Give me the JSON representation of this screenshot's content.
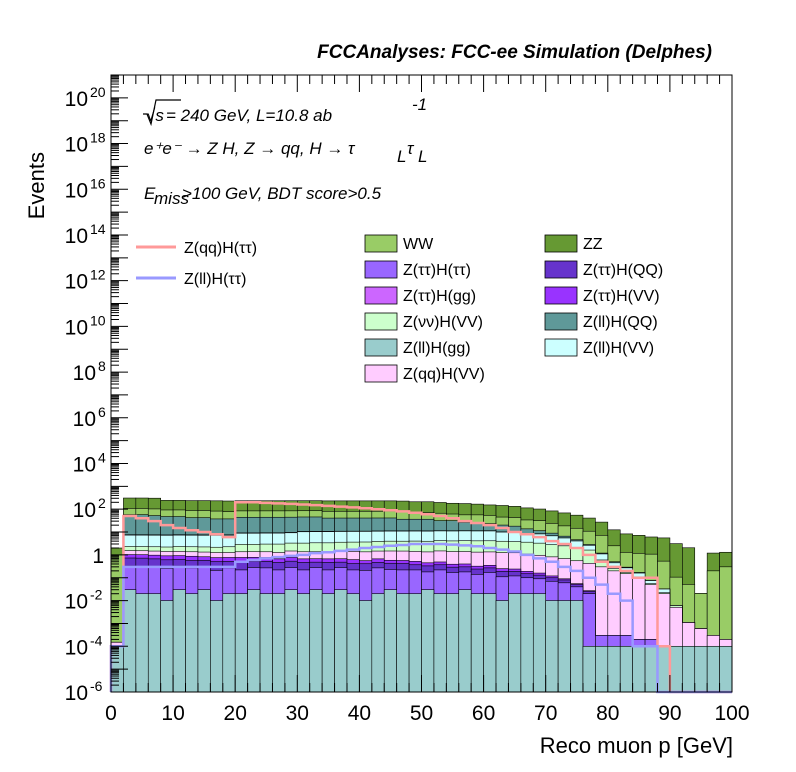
{
  "chart_data": {
    "type": "area",
    "title": "FCCAnalyses: FCC-ee Simulation (Delphes)",
    "xlabel": "Reco muon p [GeV]",
    "ylabel": "Events",
    "xlim": [
      0,
      100
    ],
    "ylim": [
      1e-06,
      1e+21
    ],
    "yscale": "log",
    "grid": false,
    "legend_position": "upper-center",
    "x_ticks": [
      "0",
      "10",
      "20",
      "30",
      "40",
      "50",
      "60",
      "70",
      "80",
      "90",
      "100"
    ],
    "y_ticks": [
      {
        "base": "10",
        "exp": "-6"
      },
      {
        "base": "10",
        "exp": "-4"
      },
      {
        "base": "10",
        "exp": "-2"
      },
      {
        "base": "1",
        "exp": ""
      },
      {
        "base": "10",
        "exp": "2"
      },
      {
        "base": "10",
        "exp": "4"
      },
      {
        "base": "10",
        "exp": "6"
      },
      {
        "base": "10",
        "exp": "8"
      },
      {
        "base": "10",
        "exp": "10"
      },
      {
        "base": "10",
        "exp": "12"
      },
      {
        "base": "10",
        "exp": "14"
      },
      {
        "base": "10",
        "exp": "16"
      },
      {
        "base": "10",
        "exp": "18"
      },
      {
        "base": "10",
        "exp": "20"
      }
    ],
    "annotations": {
      "line1_sqrt": "√s",
      "line1_text": "= 240 GeV, L=10.8 ab",
      "line1_exp": "-1",
      "line2": "e⁺e⁻ → Z H, Z → qq, H → τ",
      "line2_sub1": "L",
      "line2_tau": "τ",
      "line2_sub2": "L",
      "line3_main": "E",
      "line3_sub": "miss",
      "line3_rest": ">100 GeV, BDT score>0.5"
    },
    "bin_width": 2,
    "stack_order": [
      "Z(ll)H(gg)",
      "Z(ττ)H(ττ)",
      "Z(ττ)H(QQ)",
      "Z(ττ)H(VV)",
      "Z(qq)H(VV)",
      "Z(νν)H(VV)",
      "Z(ll)H(VV)",
      "Z(ττ)H(gg)",
      "Z(ll)H(QQ)",
      "WW",
      "ZZ"
    ],
    "stacked_series": [
      {
        "name": "Z(ll)H(gg)",
        "color": "#99cccc",
        "values": [
          0.0001,
          0.03,
          0.02,
          0.02,
          0.01,
          0.03,
          0.02,
          0.03,
          0.01,
          0.02,
          0.02,
          0.03,
          0.02,
          0.02,
          0.03,
          0.02,
          0.03,
          0.02,
          0.03,
          0.02,
          0.01,
          0.02,
          0.03,
          0.02,
          0.02,
          0.03,
          0.02,
          0.02,
          0.03,
          0.02,
          0.02,
          0.01,
          0.02,
          0.02,
          0.02,
          0.01,
          0.01,
          0.01,
          0.0001,
          0.0001,
          0.0001,
          0.0001,
          0.0001,
          0.0001,
          0.0001,
          0.0001,
          0.0001,
          0.0001,
          0.0001,
          0.0001
        ]
      },
      {
        "name": "Z(ττ)H(ττ)",
        "color": "#9966ff",
        "values": [
          0,
          0.3,
          0.3,
          0.3,
          0.25,
          0.3,
          0.25,
          0.25,
          0.2,
          0.25,
          0.2,
          0.25,
          0.25,
          0.2,
          0.25,
          0.2,
          0.25,
          0.2,
          0.25,
          0.2,
          0.2,
          0.25,
          0.2,
          0.2,
          0.2,
          0.15,
          0.2,
          0.15,
          0.15,
          0.12,
          0.15,
          0.1,
          0.1,
          0.08,
          0.07,
          0.06,
          0.05,
          0.03,
          0.02,
          0.0002,
          0.0002,
          0.0002,
          0.0001,
          0.0001,
          0,
          0,
          0,
          0,
          0,
          0
        ]
      },
      {
        "name": "Z(ττ)H(QQ)",
        "color": "#6633cc",
        "values": [
          0,
          0.4,
          0.4,
          0.35,
          0.35,
          0.3,
          0.3,
          0.3,
          0.3,
          0.25,
          0.3,
          0.25,
          0.25,
          0.25,
          0.25,
          0.25,
          0.2,
          0.25,
          0.2,
          0.2,
          0.2,
          0.2,
          0.2,
          0.2,
          0.15,
          0.15,
          0.15,
          0.12,
          0.12,
          0.1,
          0.1,
          0.08,
          0.07,
          0.05,
          0.04,
          0.03,
          0.02,
          0.01,
          0.005,
          0,
          0,
          0,
          0,
          0,
          0,
          0,
          0,
          0,
          0,
          0
        ]
      },
      {
        "name": "Z(ττ)H(VV)",
        "color": "#9933ff",
        "values": [
          0,
          0.3,
          0.3,
          0.3,
          0.3,
          0.3,
          0.3,
          0.25,
          0.25,
          0.25,
          0.25,
          0.25,
          0.25,
          0.2,
          0.25,
          0.2,
          0.2,
          0.2,
          0.2,
          0.2,
          0.15,
          0.2,
          0.15,
          0.15,
          0.15,
          0.12,
          0.12,
          0.1,
          0.1,
          0.08,
          0.08,
          0.06,
          0.05,
          0.04,
          0.03,
          0.02,
          0.01,
          0.005,
          0.002,
          0,
          0,
          0,
          0,
          0,
          0,
          0,
          0,
          0,
          0,
          0
        ]
      },
      {
        "name": "Z(qq)H(VV)",
        "color": "#ffccff",
        "values": [
          5e-05,
          0.5,
          0.5,
          0.5,
          0.5,
          0.5,
          0.5,
          0.5,
          0.5,
          0.5,
          0.6,
          0.6,
          0.6,
          0.6,
          0.7,
          0.7,
          0.7,
          0.7,
          0.8,
          0.8,
          0.8,
          0.8,
          0.9,
          0.9,
          0.9,
          0.9,
          1.0,
          1.0,
          1.0,
          1.0,
          1.0,
          1.0,
          1.0,
          0.9,
          0.8,
          0.7,
          0.6,
          0.5,
          0.4,
          0.3,
          0.2,
          0.15,
          0.1,
          0.05,
          0.02,
          0.005,
          0.001,
          0.0005,
          0.0002,
          0.0001
        ]
      },
      {
        "name": "Z(νν)H(VV)",
        "color": "#ccffcc",
        "values": [
          0,
          0.8,
          0.8,
          0.8,
          0.8,
          0.9,
          0.9,
          0.9,
          0.9,
          1.0,
          1.5,
          1.5,
          1.6,
          1.7,
          1.8,
          1.9,
          2.0,
          2.0,
          2.1,
          2.2,
          2.3,
          2.4,
          2.5,
          2.5,
          2.6,
          2.6,
          2.7,
          2.7,
          2.8,
          2.8,
          2.8,
          2.7,
          2.6,
          2.5,
          2.3,
          2.0,
          1.8,
          1.5,
          1.2,
          0.3,
          0.05,
          0.02,
          0.01,
          0.005,
          0.002,
          0.001,
          0,
          0,
          0,
          0
        ]
      },
      {
        "name": "Z(ll)H(VV)",
        "color": "#ccffff",
        "values": [
          0,
          5,
          5,
          5,
          5,
          5,
          5,
          5,
          5,
          5,
          6,
          6,
          6,
          6,
          6,
          7,
          7,
          7,
          7,
          7,
          7,
          7,
          7,
          7,
          7,
          7,
          7,
          7,
          7,
          7,
          7,
          6,
          6,
          5,
          5,
          4,
          3,
          2,
          1,
          0.5,
          0.2,
          0.1,
          0.05,
          0.02,
          0.01,
          0,
          0,
          0,
          0,
          0
        ]
      },
      {
        "name": "Z(ττ)H(gg)",
        "color": "#cc66ff",
        "values": [
          0,
          0.3,
          0.3,
          0.3,
          0.3,
          0.3,
          0.3,
          0.3,
          0.3,
          0.3,
          0.3,
          0.3,
          0.3,
          0.3,
          0.3,
          0.3,
          0.3,
          0.3,
          0.3,
          0.3,
          0.3,
          0.3,
          0.3,
          0.3,
          0.3,
          0.3,
          0.3,
          0.3,
          0.3,
          0.3,
          0.3,
          0.2,
          0.2,
          0.2,
          0.2,
          0.1,
          0.1,
          0.05,
          0.02,
          0,
          0,
          0,
          0,
          0,
          0,
          0,
          0,
          0,
          0,
          0
        ]
      },
      {
        "name": "Z(ll)H(QQ)",
        "color": "#5f9999",
        "values": [
          0,
          50,
          50,
          45,
          40,
          40,
          35,
          35,
          30,
          30,
          35,
          35,
          35,
          35,
          35,
          35,
          35,
          30,
          30,
          30,
          30,
          30,
          30,
          25,
          25,
          25,
          20,
          20,
          15,
          15,
          12,
          10,
          8,
          5,
          3,
          2,
          1,
          0.5,
          0.2,
          0.1,
          0.05,
          0.02,
          0.01,
          0,
          0,
          0,
          0,
          0,
          0,
          0
        ]
      },
      {
        "name": "WW",
        "color": "#99cc66",
        "values": [
          1,
          50,
          50,
          50,
          45,
          45,
          45,
          45,
          45,
          40,
          40,
          40,
          40,
          40,
          40,
          40,
          40,
          40,
          40,
          40,
          40,
          40,
          40,
          40,
          35,
          35,
          35,
          30,
          30,
          30,
          30,
          25,
          25,
          20,
          20,
          15,
          12,
          10,
          8,
          6,
          2,
          1,
          1,
          1,
          0.5,
          0.1,
          0.05,
          0.02,
          0.2,
          0.3
        ]
      },
      {
        "name": "ZZ",
        "color": "#669933",
        "values": [
          1,
          200,
          200,
          200,
          150,
          150,
          150,
          150,
          150,
          150,
          150,
          150,
          150,
          150,
          150,
          150,
          150,
          150,
          150,
          150,
          150,
          150,
          150,
          150,
          140,
          140,
          130,
          120,
          120,
          110,
          100,
          100,
          90,
          80,
          70,
          60,
          50,
          40,
          30,
          20,
          10,
          7,
          6,
          5,
          5,
          3,
          2,
          0.0001,
          1,
          1
        ]
      }
    ],
    "line_series": [
      {
        "name": "Z(qq)H(ττ)",
        "color": "#ff9999",
        "values": [
          0.0001,
          50,
          40,
          30,
          20,
          15,
          12,
          10,
          8,
          6,
          200,
          200,
          190,
          180,
          170,
          160,
          150,
          140,
          130,
          120,
          110,
          100,
          90,
          80,
          70,
          60,
          50,
          40,
          30,
          25,
          20,
          15,
          10,
          8,
          6,
          4,
          3,
          2,
          1,
          0.5,
          0.3,
          0.2,
          0.1,
          0.1,
          0.0001,
          0,
          0,
          0,
          0,
          0
        ]
      },
      {
        "name": "Z(ll)H(ττ)",
        "color": "#9999ff",
        "values": [
          0.0001,
          0.3,
          0.3,
          0.3,
          0.3,
          0.3,
          0.3,
          0.3,
          0.3,
          0.3,
          0.5,
          0.6,
          0.7,
          0.8,
          0.9,
          1.0,
          1.2,
          1.3,
          1.5,
          1.7,
          2.0,
          2.2,
          2.5,
          2.7,
          3.0,
          3.0,
          3.0,
          2.8,
          2.6,
          2.4,
          2.0,
          1.7,
          1.4,
          1.0,
          0.7,
          0.5,
          0.3,
          0.2,
          0.1,
          0.05,
          0.02,
          0.01,
          0.0001,
          0.0001,
          0,
          0,
          0,
          0,
          0,
          0
        ]
      }
    ],
    "legend_lines": [
      "Z(qq)H(ττ)",
      "Z(ll)H(ττ)"
    ],
    "legend_boxes": [
      {
        "name": "WW",
        "color": "#99cc66"
      },
      {
        "name": "ZZ",
        "color": "#669933"
      },
      {
        "name": "Z(ττ)H(ττ)",
        "color": "#9966ff"
      },
      {
        "name": "Z(ττ)H(QQ)",
        "color": "#6633cc"
      },
      {
        "name": "Z(ττ)H(gg)",
        "color": "#cc66ff"
      },
      {
        "name": "Z(ττ)H(VV)",
        "color": "#9933ff"
      },
      {
        "name": "Z(νν)H(VV)",
        "color": "#ccffcc"
      },
      {
        "name": "Z(ll)H(QQ)",
        "color": "#5f9999"
      },
      {
        "name": "Z(ll)H(gg)",
        "color": "#99cccc"
      },
      {
        "name": "Z(ll)H(VV)",
        "color": "#ccffff"
      },
      {
        "name": "Z(qq)H(VV)",
        "color": "#ffccff"
      }
    ]
  }
}
